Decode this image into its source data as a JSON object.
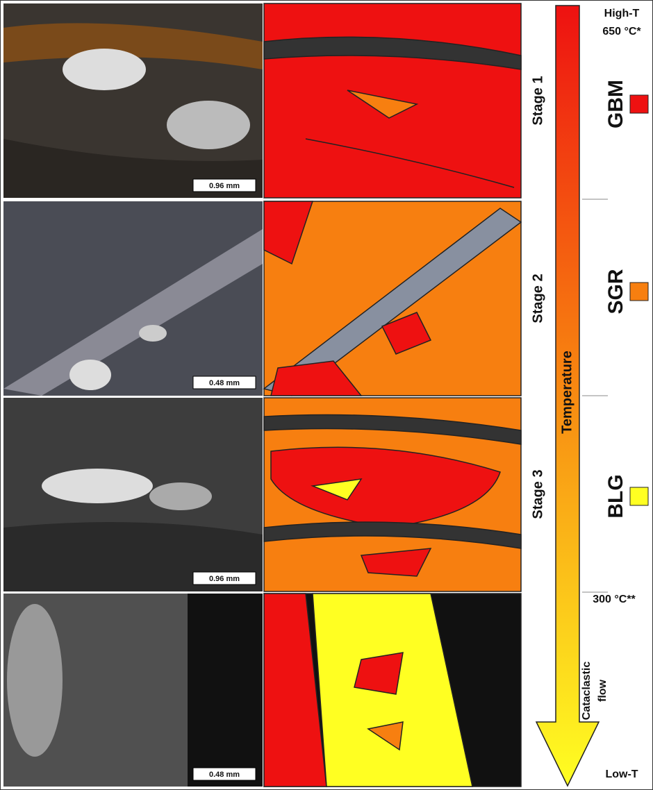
{
  "panels": [
    {
      "scale": "0.96 mm",
      "stage": "Stage 1"
    },
    {
      "scale": "0.48 mm",
      "stage": "Stage 2"
    },
    {
      "scale": "0.96 mm",
      "stage": "Stage 3"
    },
    {
      "scale": "0.48 mm",
      "stage": [
        "Cataclastic",
        "flow"
      ]
    }
  ],
  "arrow": {
    "label": "Temperature",
    "top": [
      "High-T",
      "650 °C*"
    ],
    "mid": "300 °C**",
    "bottom": "Low-T"
  },
  "legend": [
    {
      "label": "GBM",
      "color": "#ee1111"
    },
    {
      "label": "SGR",
      "color": "#f77f10"
    },
    {
      "label": "BLG",
      "color": "#ffff22"
    }
  ]
}
